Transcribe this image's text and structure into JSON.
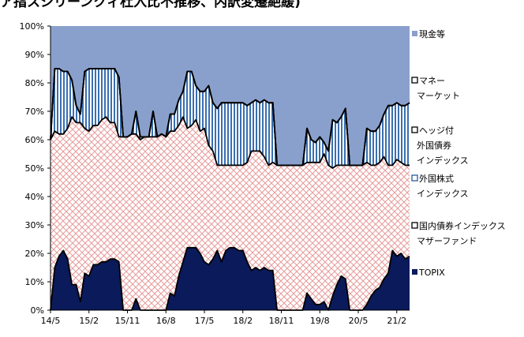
{
  "title": "ア指スシリーンクィ杜入比不推移、内訳変遷絶緩)",
  "chart_data": {
    "type": "area",
    "stacked": true,
    "title": "ア指スシリーンクィ杜入比不推移、内訳変遷絶緩)",
    "xlabel": "",
    "ylabel": "",
    "ylim": [
      0,
      100
    ],
    "yticks": [
      "0%",
      "10%",
      "20%",
      "30%",
      "40%",
      "50%",
      "60%",
      "70%",
      "80%",
      "90%",
      "100%"
    ],
    "xticks": [
      "14/5",
      "15/2",
      "15/11",
      "16/8",
      "17/5",
      "18/2",
      "18/11",
      "19/8",
      "20/5",
      "21/2"
    ],
    "x": [
      "14/5",
      "14/6",
      "14/7",
      "14/8",
      "14/9",
      "14/10",
      "14/11",
      "14/12",
      "15/1",
      "15/2",
      "15/3",
      "15/4",
      "15/5",
      "15/6",
      "15/7",
      "15/8",
      "15/9",
      "15/10",
      "15/11",
      "15/12",
      "16/1",
      "16/2",
      "16/3",
      "16/4",
      "16/5",
      "16/6",
      "16/7",
      "16/8",
      "16/9",
      "16/10",
      "16/11",
      "16/12",
      "17/1",
      "17/2",
      "17/3",
      "17/4",
      "17/5",
      "17/6",
      "17/7",
      "17/8",
      "17/9",
      "17/10",
      "17/11",
      "17/12",
      "18/1",
      "18/2",
      "18/3",
      "18/4",
      "18/5",
      "18/6",
      "18/7",
      "18/8",
      "18/9",
      "18/10",
      "18/11",
      "18/12",
      "19/1",
      "19/2",
      "19/3",
      "19/4",
      "19/5",
      "19/6",
      "19/7",
      "19/8",
      "19/9",
      "19/10",
      "19/11",
      "19/12",
      "20/1",
      "20/2",
      "20/3",
      "20/4",
      "20/5",
      "20/6",
      "20/7",
      "20/8",
      "20/9",
      "20/10",
      "20/11",
      "20/12",
      "21/1",
      "21/2",
      "21/3",
      "21/4",
      "21/5"
    ],
    "legend_position": "right",
    "series": [
      {
        "name": "TOPIX",
        "color": "#0a1a5a",
        "fill": "solid",
        "values": [
          0,
          15,
          19,
          21,
          18,
          9,
          9,
          3,
          13,
          12,
          16,
          16,
          17,
          17,
          18,
          18,
          17,
          0,
          0,
          0,
          4,
          0,
          0,
          0,
          0,
          0,
          0,
          0,
          6,
          5,
          12,
          17,
          22,
          22,
          22,
          20,
          17,
          16,
          18,
          21,
          17,
          21,
          22,
          22,
          21,
          21,
          17,
          14,
          15,
          14,
          15,
          14,
          14,
          0,
          0,
          0,
          0,
          0,
          0,
          0,
          6,
          4,
          2,
          2,
          3,
          0,
          5,
          9,
          12,
          11,
          0,
          0,
          0,
          0,
          2,
          5,
          7,
          8,
          11,
          13,
          21,
          19,
          20,
          18,
          19
        ]
      },
      {
        "name": "国内債券インデックスマザーファンド",
        "color": "#e8a0a0",
        "fill": "crosshatch",
        "values": [
          60,
          48,
          43,
          41,
          46,
          59,
          57,
          63,
          51,
          51,
          49,
          49,
          50,
          51,
          48,
          48,
          44,
          61,
          61,
          62,
          58,
          60,
          61,
          61,
          61,
          61,
          62,
          61,
          57,
          58,
          53,
          51,
          42,
          43,
          45,
          43,
          47,
          42,
          38,
          30,
          34,
          30,
          29,
          29,
          30,
          30,
          35,
          42,
          41,
          42,
          39,
          37,
          38,
          51,
          51,
          51,
          51,
          51,
          51,
          51,
          46,
          48,
          50,
          50,
          52,
          51,
          45,
          42,
          39,
          40,
          51,
          51,
          51,
          51,
          50,
          46,
          44,
          44,
          43,
          38,
          30,
          34,
          32,
          33,
          32
        ]
      },
      {
        "name": "外国株式インデックス",
        "color": "#2a5aa0",
        "fill": "vstripes",
        "values": [
          0,
          22,
          23,
          22,
          20,
          13,
          6,
          3,
          20,
          22,
          20,
          20,
          18,
          17,
          19,
          19,
          21,
          0,
          0,
          0,
          8,
          1,
          0,
          0,
          9,
          0,
          0,
          0,
          6,
          6,
          9,
          9,
          20,
          19,
          12,
          14,
          13,
          21,
          17,
          20,
          22,
          22,
          22,
          22,
          22,
          22,
          20,
          17,
          18,
          17,
          20,
          22,
          21,
          0,
          0,
          0,
          0,
          0,
          0,
          0,
          12,
          8,
          7,
          9,
          4,
          5,
          17,
          15,
          17,
          20,
          0,
          0,
          0,
          0,
          12,
          12,
          12,
          13,
          15,
          21,
          21,
          20,
          20,
          21,
          22
        ]
      },
      {
        "name": "ヘッジ付外国債券インデックス",
        "color": "#9ab0d0",
        "fill": "dots",
        "values": [
          0,
          0,
          0,
          0,
          0,
          0,
          0,
          0,
          0,
          0,
          0,
          0,
          0,
          0,
          0,
          0,
          0,
          0,
          0,
          0,
          0,
          0,
          0,
          0,
          0,
          0,
          0,
          0,
          0,
          0,
          0,
          0,
          0,
          0,
          0,
          0,
          0,
          0,
          0,
          0,
          0,
          0,
          0,
          0,
          0,
          0,
          0,
          0,
          0,
          0,
          0,
          0,
          0,
          0,
          0,
          0,
          0,
          0,
          0,
          0,
          0,
          0,
          0,
          0,
          0,
          0,
          0,
          0,
          0,
          0,
          0,
          0,
          0,
          0,
          0,
          0,
          0,
          0,
          0,
          0,
          0,
          0,
          0,
          0,
          0
        ]
      },
      {
        "name": "マネーマーケット",
        "color": "#ffffff",
        "fill": "white",
        "values": [
          0,
          0,
          0,
          0,
          0,
          0,
          0,
          0,
          0,
          0,
          0,
          0,
          0,
          0,
          0,
          0,
          0,
          0,
          0,
          0,
          0,
          0,
          0,
          0,
          0,
          0,
          0,
          0,
          0,
          0,
          0,
          0,
          0,
          0,
          0,
          0,
          0,
          0,
          0,
          0,
          0,
          0,
          0,
          0,
          0,
          0,
          0,
          0,
          0,
          0,
          0,
          0,
          0,
          0,
          0,
          0,
          0,
          0,
          0,
          0,
          0,
          0,
          0,
          0,
          0,
          0,
          0,
          0,
          0,
          0,
          0,
          0,
          0,
          0,
          0,
          0,
          0,
          0,
          0,
          0,
          0,
          0,
          0,
          0,
          0
        ]
      },
      {
        "name": "現金等",
        "color": "#8aa0cc",
        "fill": "solid",
        "values": [
          40,
          15,
          15,
          16,
          16,
          19,
          28,
          31,
          16,
          15,
          15,
          15,
          15,
          15,
          15,
          15,
          18,
          39,
          39,
          38,
          30,
          39,
          39,
          39,
          30,
          39,
          38,
          39,
          31,
          31,
          26,
          23,
          16,
          16,
          21,
          23,
          23,
          21,
          27,
          29,
          27,
          27,
          27,
          27,
          27,
          27,
          28,
          27,
          26,
          27,
          26,
          27,
          27,
          49,
          49,
          49,
          49,
          49,
          49,
          49,
          36,
          40,
          41,
          39,
          41,
          44,
          33,
          34,
          32,
          29,
          49,
          49,
          49,
          49,
          36,
          37,
          37,
          35,
          31,
          28,
          28,
          27,
          28,
          28,
          27
        ]
      }
    ]
  }
}
